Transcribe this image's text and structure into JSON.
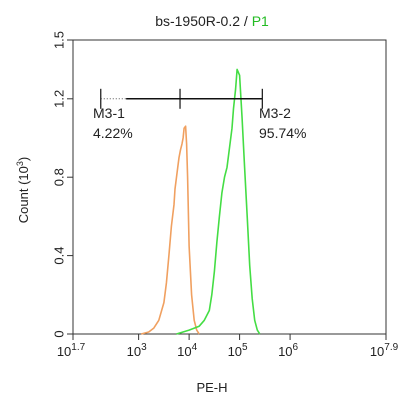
{
  "chart_data": {
    "type": "line",
    "title_main": "bs-1950R-0.2 / ",
    "title_accent": "P1",
    "xlabel": "PE-H",
    "ylabel": "Count (10",
    "ylabel_exp": "3",
    "ylabel_close": ")",
    "x_scale": "log",
    "xlim_log10": [
      1.7,
      7.9
    ],
    "ylim": [
      0,
      1.5
    ],
    "x_ticks": [
      {
        "base": "10",
        "exp": "1.7",
        "log": 1.7
      },
      {
        "base": "10",
        "exp": "3",
        "log": 3
      },
      {
        "base": "10",
        "exp": "4",
        "log": 4
      },
      {
        "base": "10",
        "exp": "5",
        "log": 5
      },
      {
        "base": "10",
        "exp": "6",
        "log": 6
      },
      {
        "base": "10",
        "exp": "7.9",
        "log": 7.9
      }
    ],
    "y_ticks": [
      {
        "label": "0",
        "value": 0
      },
      {
        "label": "0.4",
        "value": 0.4
      },
      {
        "label": "0.8",
        "value": 0.8
      },
      {
        "label": "1.2",
        "value": 1.2
      },
      {
        "label": "1.5",
        "value": 1.5
      }
    ],
    "grid": false,
    "series": [
      {
        "color": "#f0a060",
        "x_log10": [
          3.05,
          3.2,
          3.3,
          3.4,
          3.5,
          3.55,
          3.6,
          3.65,
          3.7,
          3.72,
          3.75,
          3.78,
          3.8,
          3.83,
          3.86,
          3.88,
          3.9,
          3.93,
          3.95,
          3.97,
          4.0,
          4.05,
          4.1,
          4.15,
          4.2
        ],
        "y": [
          0.0,
          0.01,
          0.03,
          0.07,
          0.16,
          0.26,
          0.4,
          0.55,
          0.66,
          0.74,
          0.8,
          0.86,
          0.9,
          0.94,
          0.97,
          1.0,
          1.05,
          1.06,
          0.97,
          0.8,
          0.45,
          0.2,
          0.07,
          0.02,
          0.0
        ]
      },
      {
        "color": "#44dd44",
        "x_log10": [
          3.75,
          4.0,
          4.2,
          4.3,
          4.4,
          4.45,
          4.5,
          4.55,
          4.6,
          4.65,
          4.7,
          4.75,
          4.8,
          4.85,
          4.88,
          4.92,
          4.95,
          5.0,
          5.05,
          5.1,
          5.15,
          5.2,
          5.25,
          5.3,
          5.35,
          5.4
        ],
        "y": [
          0.0,
          0.02,
          0.04,
          0.07,
          0.12,
          0.2,
          0.32,
          0.47,
          0.6,
          0.72,
          0.8,
          0.85,
          0.95,
          1.05,
          1.15,
          1.25,
          1.35,
          1.32,
          1.1,
          0.85,
          0.6,
          0.35,
          0.18,
          0.07,
          0.02,
          0.0
        ]
      }
    ],
    "gates": [
      {
        "name": "M3-1",
        "percent": "4.22%",
        "x_start_log10": 2.25,
        "x_end_log10": 3.82,
        "y_value": 1.2
      },
      {
        "name": "M3-2",
        "percent": "95.74%",
        "x_start_log10": 3.82,
        "x_end_log10": 5.45,
        "y_value": 1.2
      }
    ]
  }
}
